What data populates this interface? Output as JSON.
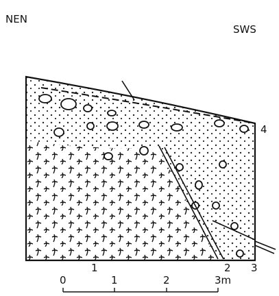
{
  "labels": {
    "left_direction": "NEN",
    "right_direction": "SWS",
    "layer": "4",
    "point_a": "1",
    "point_b": "2",
    "point_c": "3"
  },
  "scale": {
    "ticks": [
      "0",
      "1",
      "2",
      "3m"
    ]
  }
}
